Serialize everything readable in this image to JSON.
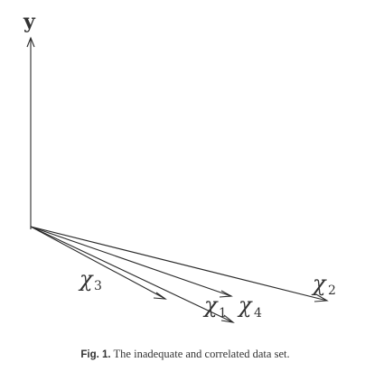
{
  "diagram": {
    "y_axis_label": "y",
    "vectors": [
      {
        "symbol": "χ",
        "subscript": "1"
      },
      {
        "symbol": "χ",
        "subscript": "2"
      },
      {
        "symbol": "χ",
        "subscript": "3"
      },
      {
        "symbol": "χ",
        "subscript": "4"
      }
    ]
  },
  "caption": {
    "tag": "Fig. 1.",
    "text": "The inadequate and correlated data set."
  }
}
